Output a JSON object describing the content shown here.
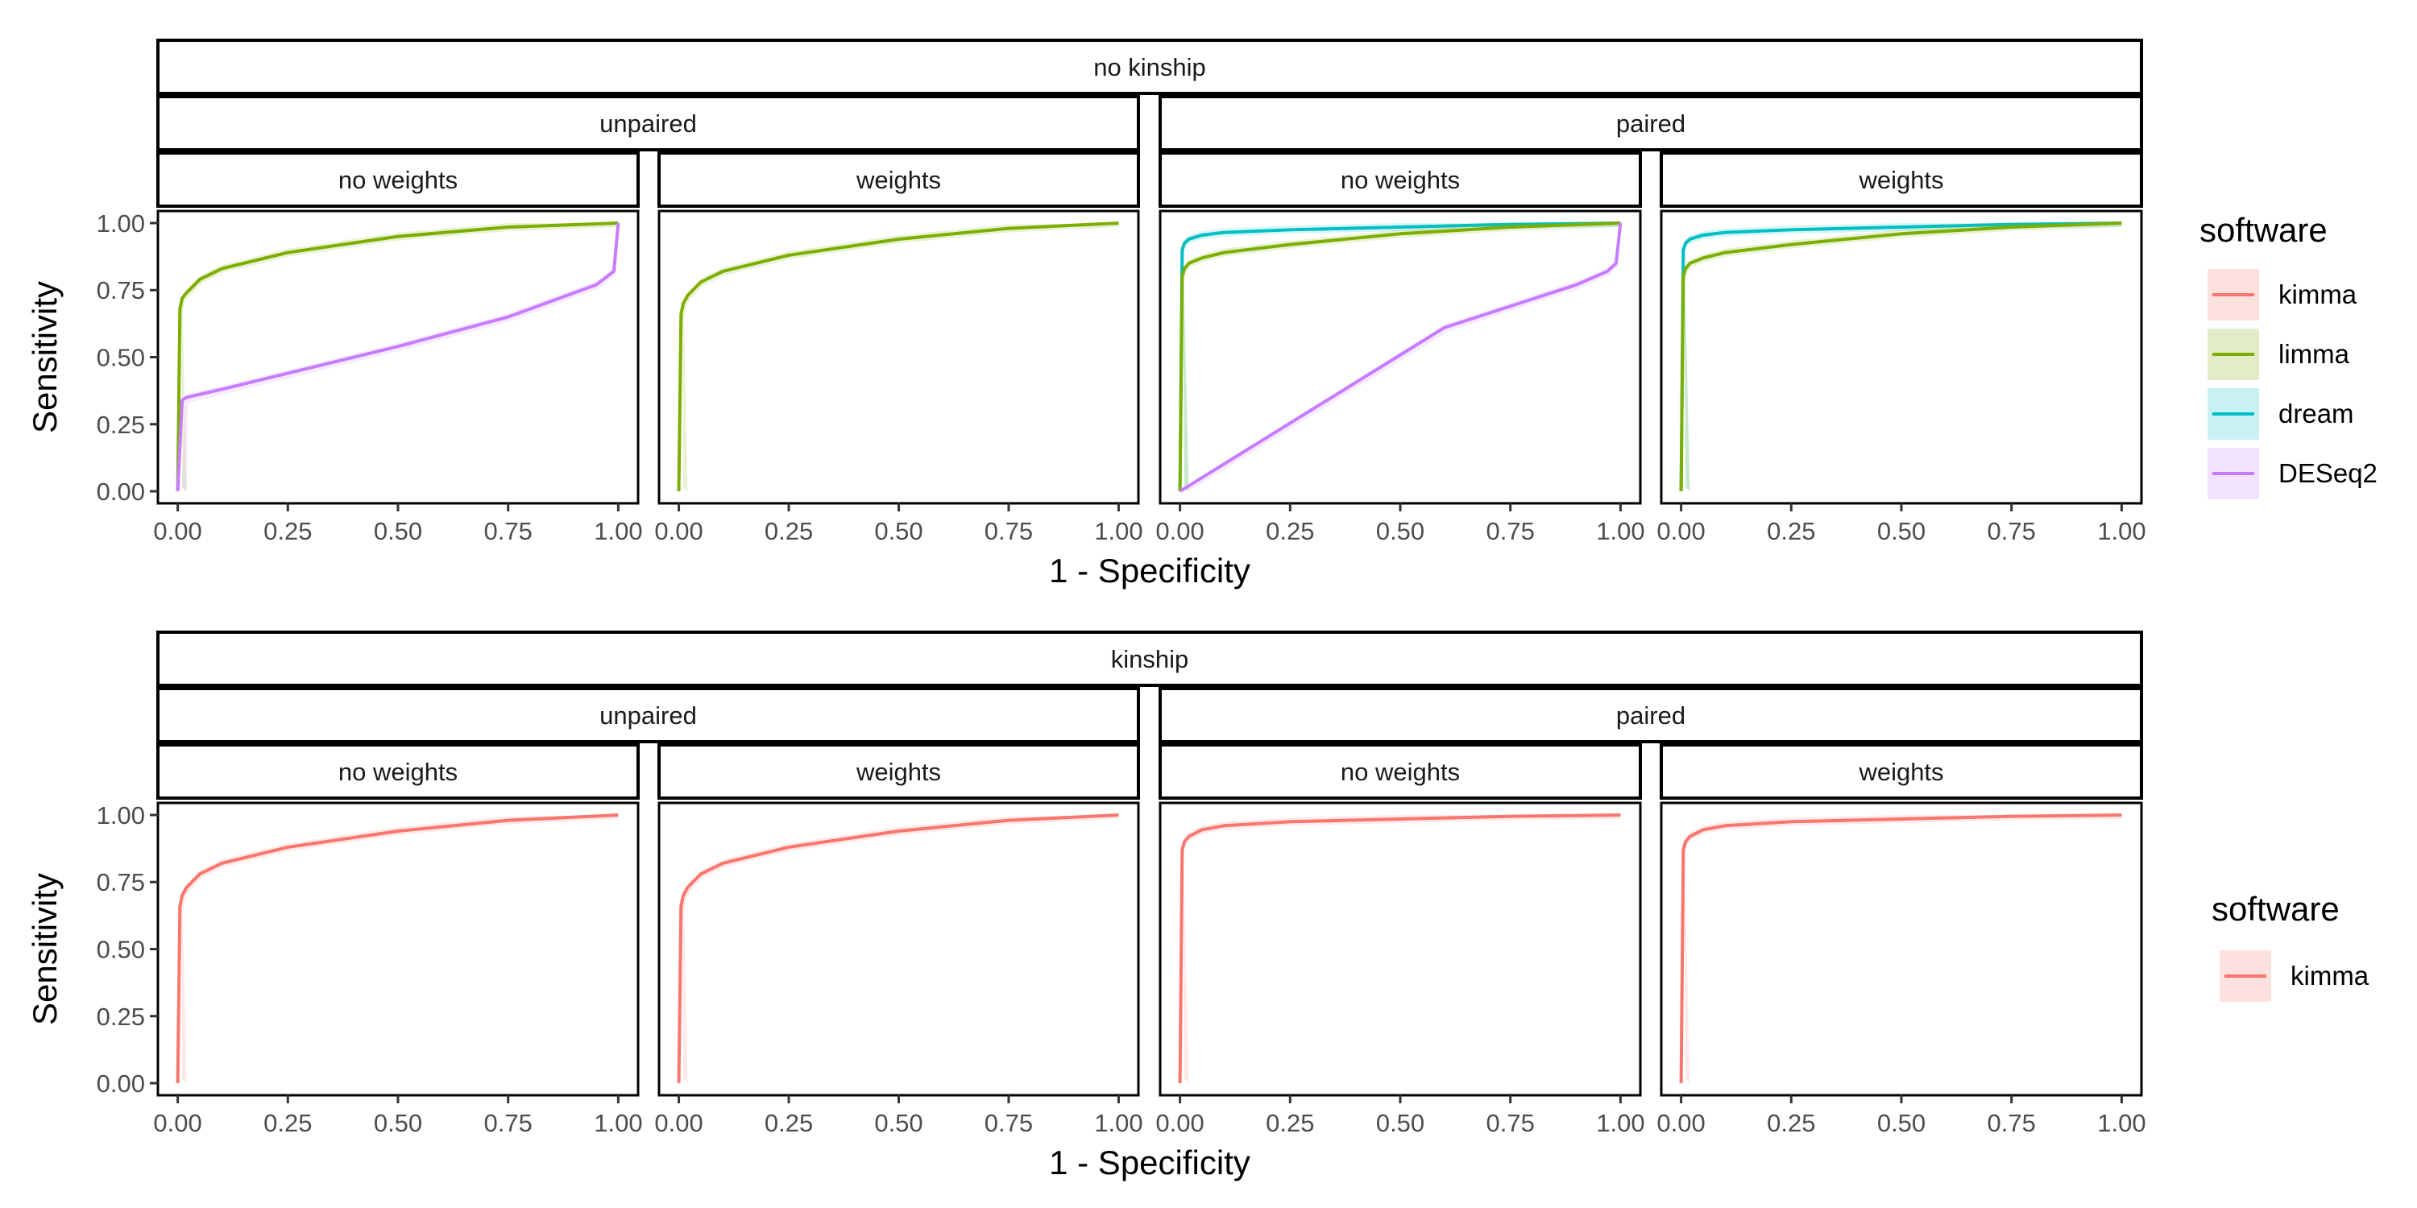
{
  "chart_data": [
    {
      "type": "line",
      "strip": "no kinship",
      "xlabel": "1 - Specificity",
      "ylabel": "Sensitivity",
      "xlim": [
        0,
        1
      ],
      "ylim": [
        0,
        1
      ],
      "x_ticks": [
        "0.00",
        "0.25",
        "0.50",
        "0.75",
        "1.00"
      ],
      "y_ticks": [
        "0.00",
        "0.25",
        "0.50",
        "0.75",
        "1.00"
      ],
      "legend": {
        "title": "software",
        "position": "right",
        "entries": [
          {
            "label": "kimma",
            "color": "#F8766D"
          },
          {
            "label": "limma",
            "color": "#7CAE00"
          },
          {
            "label": "dream",
            "color": "#00BFC4"
          },
          {
            "label": "DESeq2",
            "color": "#C77CFF"
          }
        ]
      },
      "groups": [
        {
          "label": "unpaired",
          "panels": [
            {
              "label": "no weights",
              "series": [
                {
                  "name": "limma",
                  "color": "#7CAE00",
                  "x": [
                    0,
                    0.005,
                    0.01,
                    0.02,
                    0.05,
                    0.1,
                    0.25,
                    0.5,
                    0.75,
                    1.0
                  ],
                  "y": [
                    0,
                    0.68,
                    0.72,
                    0.74,
                    0.79,
                    0.83,
                    0.89,
                    0.95,
                    0.985,
                    1.0
                  ]
                },
                {
                  "name": "DESeq2",
                  "color": "#C77CFF",
                  "x": [
                    0,
                    0.01,
                    0.02,
                    0.1,
                    0.25,
                    0.5,
                    0.75,
                    0.95,
                    0.99,
                    1.0
                  ],
                  "y": [
                    0,
                    0.34,
                    0.35,
                    0.38,
                    0.44,
                    0.54,
                    0.65,
                    0.77,
                    0.82,
                    1.0
                  ]
                }
              ]
            },
            {
              "label": "weights",
              "series": [
                {
                  "name": "limma",
                  "color": "#7CAE00",
                  "x": [
                    0,
                    0.005,
                    0.01,
                    0.02,
                    0.05,
                    0.1,
                    0.25,
                    0.5,
                    0.75,
                    1.0
                  ],
                  "y": [
                    0,
                    0.66,
                    0.7,
                    0.73,
                    0.78,
                    0.82,
                    0.88,
                    0.94,
                    0.98,
                    1.0
                  ]
                }
              ]
            }
          ]
        },
        {
          "label": "paired",
          "panels": [
            {
              "label": "no weights",
              "series": [
                {
                  "name": "dream",
                  "color": "#00BFC4",
                  "x": [
                    0,
                    0.005,
                    0.01,
                    0.02,
                    0.05,
                    0.1,
                    0.25,
                    0.5,
                    0.75,
                    1.0
                  ],
                  "y": [
                    0,
                    0.9,
                    0.925,
                    0.94,
                    0.955,
                    0.965,
                    0.975,
                    0.985,
                    0.995,
                    1.0
                  ]
                },
                {
                  "name": "limma",
                  "color": "#7CAE00",
                  "x": [
                    0,
                    0.005,
                    0.01,
                    0.02,
                    0.05,
                    0.1,
                    0.25,
                    0.5,
                    0.75,
                    1.0
                  ],
                  "y": [
                    0,
                    0.8,
                    0.83,
                    0.85,
                    0.87,
                    0.89,
                    0.92,
                    0.96,
                    0.985,
                    1.0
                  ]
                },
                {
                  "name": "DESeq2",
                  "color": "#C77CFF",
                  "x": [
                    0,
                    0.6,
                    0.75,
                    0.9,
                    0.97,
                    0.99,
                    1.0
                  ],
                  "y": [
                    0,
                    0.61,
                    0.69,
                    0.77,
                    0.82,
                    0.85,
                    1.0
                  ]
                }
              ]
            },
            {
              "label": "weights",
              "series": [
                {
                  "name": "dream",
                  "color": "#00BFC4",
                  "x": [
                    0,
                    0.005,
                    0.01,
                    0.02,
                    0.05,
                    0.1,
                    0.25,
                    0.5,
                    0.75,
                    1.0
                  ],
                  "y": [
                    0,
                    0.9,
                    0.925,
                    0.94,
                    0.955,
                    0.965,
                    0.975,
                    0.985,
                    0.995,
                    1.0
                  ]
                },
                {
                  "name": "limma",
                  "color": "#7CAE00",
                  "x": [
                    0,
                    0.005,
                    0.01,
                    0.02,
                    0.05,
                    0.1,
                    0.25,
                    0.5,
                    0.75,
                    1.0
                  ],
                  "y": [
                    0,
                    0.8,
                    0.83,
                    0.85,
                    0.87,
                    0.89,
                    0.92,
                    0.96,
                    0.985,
                    1.0
                  ]
                }
              ]
            }
          ]
        }
      ]
    },
    {
      "type": "line",
      "strip": "kinship",
      "xlabel": "1 - Specificity",
      "ylabel": "Sensitivity",
      "xlim": [
        0,
        1
      ],
      "ylim": [
        0,
        1
      ],
      "x_ticks": [
        "0.00",
        "0.25",
        "0.50",
        "0.75",
        "1.00"
      ],
      "y_ticks": [
        "0.00",
        "0.25",
        "0.50",
        "0.75",
        "1.00"
      ],
      "legend": {
        "title": "software",
        "position": "right",
        "entries": [
          {
            "label": "kimma",
            "color": "#F8766D"
          }
        ]
      },
      "groups": [
        {
          "label": "unpaired",
          "panels": [
            {
              "label": "no weights",
              "series": [
                {
                  "name": "kimma",
                  "color": "#F8766D",
                  "x": [
                    0,
                    0.005,
                    0.01,
                    0.02,
                    0.05,
                    0.1,
                    0.25,
                    0.5,
                    0.75,
                    1.0
                  ],
                  "y": [
                    0,
                    0.66,
                    0.7,
                    0.73,
                    0.78,
                    0.82,
                    0.88,
                    0.94,
                    0.98,
                    1.0
                  ]
                }
              ]
            },
            {
              "label": "weights",
              "series": [
                {
                  "name": "kimma",
                  "color": "#F8766D",
                  "x": [
                    0,
                    0.005,
                    0.01,
                    0.02,
                    0.05,
                    0.1,
                    0.25,
                    0.5,
                    0.75,
                    1.0
                  ],
                  "y": [
                    0,
                    0.66,
                    0.7,
                    0.73,
                    0.78,
                    0.82,
                    0.88,
                    0.94,
                    0.98,
                    1.0
                  ]
                }
              ]
            }
          ]
        },
        {
          "label": "paired",
          "panels": [
            {
              "label": "no weights",
              "series": [
                {
                  "name": "kimma",
                  "color": "#F8766D",
                  "x": [
                    0,
                    0.005,
                    0.01,
                    0.02,
                    0.05,
                    0.1,
                    0.25,
                    0.5,
                    0.75,
                    1.0
                  ],
                  "y": [
                    0,
                    0.87,
                    0.9,
                    0.92,
                    0.945,
                    0.96,
                    0.975,
                    0.985,
                    0.995,
                    1.0
                  ]
                }
              ]
            },
            {
              "label": "weights",
              "series": [
                {
                  "name": "kimma",
                  "color": "#F8766D",
                  "x": [
                    0,
                    0.005,
                    0.01,
                    0.02,
                    0.05,
                    0.1,
                    0.25,
                    0.5,
                    0.75,
                    1.0
                  ],
                  "y": [
                    0,
                    0.87,
                    0.9,
                    0.92,
                    0.945,
                    0.96,
                    0.975,
                    0.985,
                    0.995,
                    1.0
                  ]
                }
              ]
            }
          ]
        }
      ]
    }
  ]
}
